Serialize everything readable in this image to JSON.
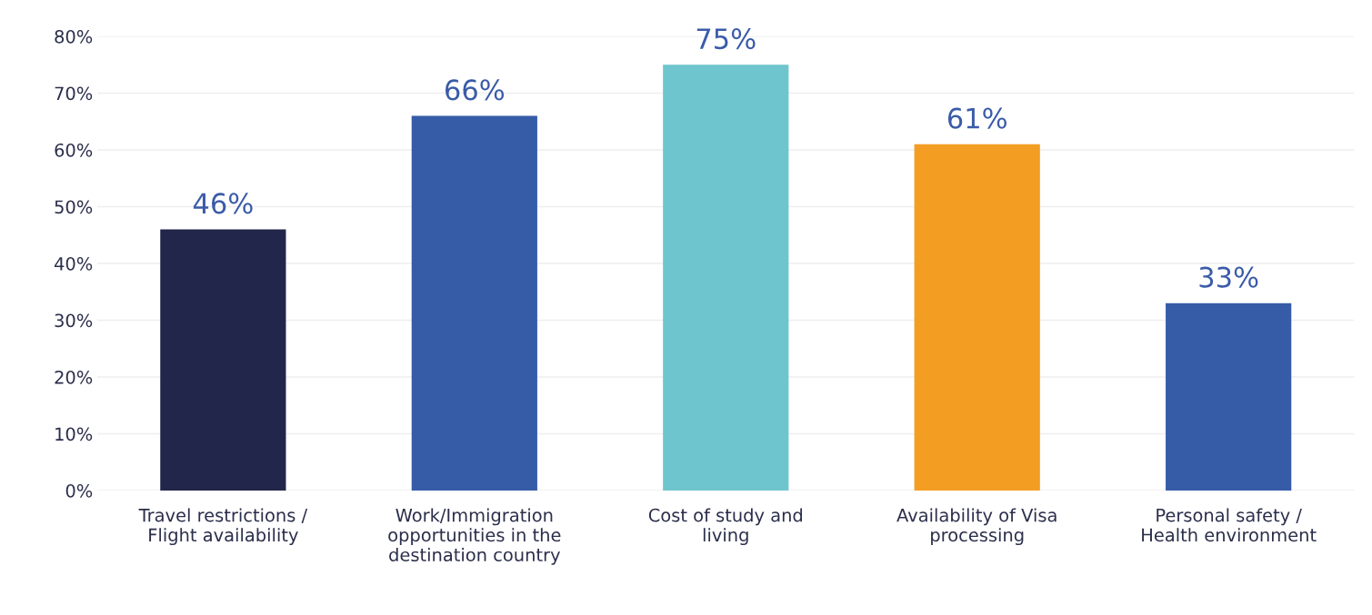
{
  "chart_data": {
    "type": "bar",
    "categories": [
      "Travel restrictions /\nFlight availability",
      "Work/Immigration\nopportunities in the\ndestination country",
      "Cost of study and\nliving",
      "Availability of Visa\nprocessing",
      "Personal safety /\nHealth environment"
    ],
    "values": [
      46,
      66,
      75,
      61,
      33
    ],
    "colors": [
      "#21264a",
      "#365ca8",
      "#6ec5ce",
      "#f39e22",
      "#365ca8"
    ],
    "value_labels": [
      "46%",
      "66%",
      "75%",
      "61%",
      "33%"
    ],
    "ylim": [
      0,
      80
    ],
    "yticks": [
      {
        "value": 0,
        "label": "0%"
      },
      {
        "value": 10,
        "label": "10%"
      },
      {
        "value": 20,
        "label": "20%"
      },
      {
        "value": 30,
        "label": "30%"
      },
      {
        "value": 40,
        "label": "40%"
      },
      {
        "value": 50,
        "label": "50%"
      },
      {
        "value": 60,
        "label": "60%"
      },
      {
        "value": 70,
        "label": "70%"
      },
      {
        "value": 80,
        "label": "80%"
      }
    ],
    "grid": "y"
  }
}
